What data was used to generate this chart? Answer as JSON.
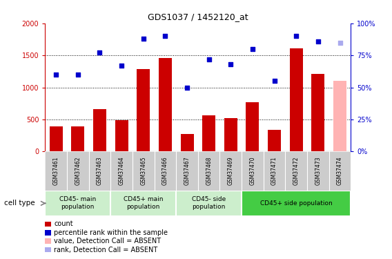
{
  "title": "GDS1037 / 1452120_at",
  "samples": [
    "GSM37461",
    "GSM37462",
    "GSM37463",
    "GSM37464",
    "GSM37465",
    "GSM37466",
    "GSM37467",
    "GSM37468",
    "GSM37469",
    "GSM37470",
    "GSM37471",
    "GSM37472",
    "GSM37473",
    "GSM37474"
  ],
  "counts": [
    390,
    390,
    660,
    490,
    1290,
    1460,
    270,
    560,
    520,
    770,
    340,
    1610,
    1210,
    null
  ],
  "counts_absent": [
    null,
    null,
    null,
    null,
    null,
    null,
    null,
    null,
    null,
    null,
    null,
    null,
    null,
    1100
  ],
  "percentile_ranks": [
    60,
    60,
    77,
    67,
    88,
    90,
    50,
    72,
    68,
    80,
    55,
    90,
    86,
    null
  ],
  "ranks_absent": [
    null,
    null,
    null,
    null,
    null,
    null,
    null,
    null,
    null,
    null,
    null,
    null,
    null,
    85
  ],
  "bar_color": "#cc0000",
  "bar_absent_color": "#ffb3b3",
  "scatter_color": "#0000cc",
  "scatter_absent_color": "#aaaaee",
  "ylim_left": [
    0,
    2000
  ],
  "ylim_right": [
    0,
    100
  ],
  "yticks_left": [
    0,
    500,
    1000,
    1500,
    2000
  ],
  "ytick_labels_right": [
    "0%",
    "25%",
    "50%",
    "75%",
    "100%"
  ],
  "bg_color": "#ffffff",
  "tick_color_left": "#cc0000",
  "tick_color_right": "#0000cc",
  "groups": [
    {
      "label": "CD45- main\npopulation",
      "start": 0,
      "end": 2,
      "color": "#cceecc"
    },
    {
      "label": "CD45+ main\npopulation",
      "start": 3,
      "end": 5,
      "color": "#cceecc"
    },
    {
      "label": "CD45- side\npopulation",
      "start": 6,
      "end": 8,
      "color": "#cceecc"
    },
    {
      "label": "CD45+ side population",
      "start": 9,
      "end": 13,
      "color": "#44cc44"
    }
  ],
  "gsm_bg": "#cccccc",
  "legend_items": [
    {
      "color": "#cc0000",
      "label": "count"
    },
    {
      "color": "#0000cc",
      "label": "percentile rank within the sample"
    },
    {
      "color": "#ffb3b3",
      "label": "value, Detection Call = ABSENT"
    },
    {
      "color": "#aaaaee",
      "label": "rank, Detection Call = ABSENT"
    }
  ]
}
